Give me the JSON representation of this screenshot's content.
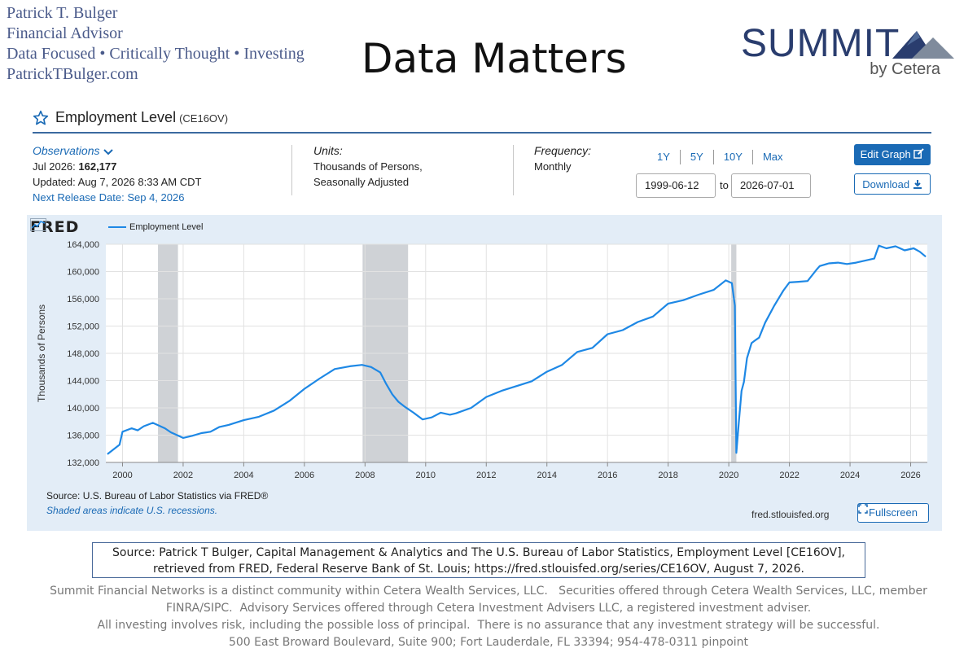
{
  "advisor": {
    "name": "Patrick T. Bulger",
    "role": "Financial Advisor",
    "tagline": "Data Focused • Critically Thought • Investing",
    "website": "PatrickTBulger.com"
  },
  "headline": "Data Matters",
  "logo": {
    "word": "SUMMIT",
    "sub": "by Cetera",
    "mark": "mountain-logo"
  },
  "series": {
    "title": "Employment Level",
    "code": "(CE16OV)",
    "observations_label": "Observations",
    "latest_label": "Jul 2026:",
    "latest_value": "162,177",
    "updated": "Updated: Aug 7, 2026 8:33 AM CDT",
    "next_release": "Next Release Date: Sep 4, 2026",
    "units_label": "Units:",
    "units_line1": "Thousands of Persons,",
    "units_line2": "Seasonally Adjusted",
    "frequency_label": "Frequency:",
    "frequency": "Monthly"
  },
  "controls": {
    "ranges": [
      "1Y",
      "5Y",
      "10Y",
      "Max"
    ],
    "start_date": "1999-06-12",
    "to_label": "to",
    "end_date": "2026-07-01",
    "edit_label": "Edit Graph",
    "download_label": "Download",
    "fullscreen_label": "Fullscreen"
  },
  "fred": {
    "logo": "FRED",
    "source": "Source: U.S. Bureau of Labor Statistics via FRED®",
    "shade_note": "Shaded areas indicate U.S. recessions.",
    "url": "fred.stlouisfed.org"
  },
  "colors": {
    "series": "#1e88e5",
    "panel": "#e3edf7",
    "recession": "#cfd2d6",
    "link": "#1a6ab5",
    "logo": "#2a3d6e"
  },
  "chart_data": {
    "type": "line",
    "ylabel": "Thousands of Persons",
    "xlim": [
      1999.45,
      2026.55
    ],
    "ylim": [
      132000,
      164000
    ],
    "yticks": [
      132000,
      136000,
      140000,
      144000,
      148000,
      152000,
      156000,
      160000,
      164000
    ],
    "ytick_labels": [
      "132,000",
      "136,000",
      "140,000",
      "144,000",
      "148,000",
      "152,000",
      "156,000",
      "160,000",
      "164,000"
    ],
    "xticks": [
      2000,
      2002,
      2004,
      2006,
      2008,
      2010,
      2012,
      2014,
      2016,
      2018,
      2020,
      2022,
      2024,
      2026
    ],
    "xtick_labels": [
      "2000",
      "2002",
      "2004",
      "2006",
      "2008",
      "2010",
      "2012",
      "2014",
      "2016",
      "2018",
      "2020",
      "2022",
      "2024",
      "2026"
    ],
    "recessions": [
      [
        2001.17,
        2001.83
      ],
      [
        2007.92,
        2009.42
      ],
      [
        2020.08,
        2020.25
      ]
    ],
    "series": [
      {
        "name": "Employment Level",
        "x": [
          1999.5,
          1999.9,
          2000.0,
          2000.3,
          2000.5,
          2000.7,
          2001.0,
          2001.2,
          2001.4,
          2001.6,
          2001.8,
          2002.0,
          2002.3,
          2002.6,
          2002.9,
          2003.2,
          2003.5,
          2004.0,
          2004.5,
          2005.0,
          2005.5,
          2006.0,
          2006.5,
          2007.0,
          2007.5,
          2007.9,
          2008.2,
          2008.5,
          2008.7,
          2008.9,
          2009.1,
          2009.3,
          2009.6,
          2009.9,
          2010.2,
          2010.5,
          2010.8,
          2011.0,
          2011.5,
          2012.0,
          2012.5,
          2013.0,
          2013.5,
          2014.0,
          2014.5,
          2015.0,
          2015.5,
          2016.0,
          2016.5,
          2017.0,
          2017.5,
          2018.0,
          2018.5,
          2019.0,
          2019.5,
          2019.9,
          2020.1,
          2020.2,
          2020.25,
          2020.33,
          2020.42,
          2020.5,
          2020.6,
          2020.75,
          2020.9,
          2021.0,
          2021.2,
          2021.5,
          2021.8,
          2022.0,
          2022.3,
          2022.6,
          2022.9,
          2023.0,
          2023.3,
          2023.6,
          2023.9,
          2024.2,
          2024.5,
          2024.8,
          2024.95,
          2025.2,
          2025.5,
          2025.8,
          2026.1,
          2026.3,
          2026.5
        ],
        "y": [
          133200,
          134600,
          136500,
          137000,
          136700,
          137300,
          137800,
          137400,
          137000,
          136400,
          136000,
          135600,
          135900,
          136300,
          136500,
          137200,
          137500,
          138200,
          138700,
          139600,
          141000,
          142800,
          144300,
          145700,
          146100,
          146300,
          146000,
          145200,
          143500,
          142000,
          140900,
          140200,
          139300,
          138300,
          138600,
          139300,
          139000,
          139200,
          140000,
          141600,
          142500,
          143200,
          143900,
          145300,
          146300,
          148200,
          148800,
          150800,
          151400,
          152600,
          153400,
          155300,
          155800,
          156600,
          157300,
          158700,
          158300,
          155000,
          133400,
          137800,
          142500,
          143800,
          147300,
          149500,
          150000,
          150300,
          152500,
          155000,
          157200,
          158400,
          158500,
          158600,
          160300,
          160800,
          161200,
          161300,
          161100,
          161300,
          161600,
          161900,
          163800,
          163400,
          163700,
          163100,
          163400,
          162900,
          162177
        ]
      }
    ]
  }
}
